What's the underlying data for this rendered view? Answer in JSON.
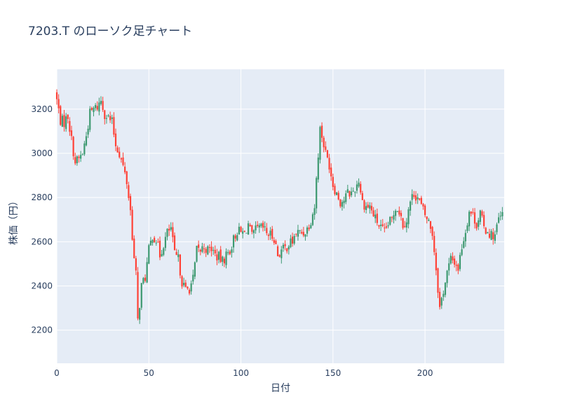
{
  "chart_data": {
    "type": "candlestick",
    "title": "7203.T のローソク足チャート",
    "xlabel": "日付",
    "ylabel": "株価（円）",
    "xlim": [
      0,
      243
    ],
    "ylim": [
      2050,
      3380
    ],
    "x_ticks": [
      0,
      50,
      100,
      150,
      200
    ],
    "x_tick_labels": [
      "0",
      "50",
      "100",
      "150",
      "200"
    ],
    "y_ticks": [
      2200,
      2400,
      2600,
      2800,
      3000,
      3200
    ],
    "y_tick_labels": [
      "2200",
      "2400",
      "2600",
      "2800",
      "3000",
      "3200"
    ],
    "grid": true,
    "increasing_color": "#3d9970",
    "decreasing_color": "#ff4136",
    "plot_bg": "#e5ecf6",
    "close_path": [
      [
        0,
        3240
      ],
      [
        2,
        3150
      ],
      [
        4,
        3140
      ],
      [
        6,
        3170
      ],
      [
        8,
        3060
      ],
      [
        10,
        2960
      ],
      [
        12,
        2975
      ],
      [
        14,
        3000
      ],
      [
        16,
        3080
      ],
      [
        18,
        3180
      ],
      [
        20,
        3200
      ],
      [
        22,
        3210
      ],
      [
        24,
        3240
      ],
      [
        26,
        3180
      ],
      [
        28,
        3160
      ],
      [
        30,
        3140
      ],
      [
        32,
        3040
      ],
      [
        34,
        3000
      ],
      [
        36,
        2940
      ],
      [
        38,
        2870
      ],
      [
        40,
        2740
      ],
      [
        42,
        2520
      ],
      [
        43,
        2450
      ],
      [
        44,
        2240
      ],
      [
        46,
        2400
      ],
      [
        48,
        2440
      ],
      [
        50,
        2560
      ],
      [
        52,
        2630
      ],
      [
        54,
        2610
      ],
      [
        56,
        2540
      ],
      [
        58,
        2590
      ],
      [
        60,
        2640
      ],
      [
        62,
        2660
      ],
      [
        64,
        2540
      ],
      [
        66,
        2520
      ],
      [
        68,
        2420
      ],
      [
        70,
        2380
      ],
      [
        72,
        2390
      ],
      [
        74,
        2430
      ],
      [
        76,
        2560
      ],
      [
        78,
        2560
      ],
      [
        80,
        2580
      ],
      [
        82,
        2560
      ],
      [
        84,
        2570
      ],
      [
        86,
        2540
      ],
      [
        88,
        2530
      ],
      [
        90,
        2510
      ],
      [
        92,
        2540
      ],
      [
        94,
        2560
      ],
      [
        96,
        2610
      ],
      [
        98,
        2650
      ],
      [
        100,
        2640
      ],
      [
        102,
        2640
      ],
      [
        104,
        2680
      ],
      [
        106,
        2620
      ],
      [
        108,
        2650
      ],
      [
        110,
        2660
      ],
      [
        112,
        2660
      ],
      [
        114,
        2640
      ],
      [
        116,
        2630
      ],
      [
        118,
        2620
      ],
      [
        120,
        2540
      ],
      [
        122,
        2560
      ],
      [
        124,
        2570
      ],
      [
        126,
        2590
      ],
      [
        128,
        2600
      ],
      [
        130,
        2640
      ],
      [
        132,
        2640
      ],
      [
        134,
        2640
      ],
      [
        136,
        2660
      ],
      [
        138,
        2700
      ],
      [
        140,
        2760
      ],
      [
        142,
        3000
      ],
      [
        143,
        3110
      ],
      [
        144,
        3080
      ],
      [
        146,
        3000
      ],
      [
        148,
        2950
      ],
      [
        150,
        2860
      ],
      [
        152,
        2820
      ],
      [
        154,
        2780
      ],
      [
        156,
        2790
      ],
      [
        158,
        2820
      ],
      [
        160,
        2820
      ],
      [
        162,
        2840
      ],
      [
        164,
        2880
      ],
      [
        166,
        2780
      ],
      [
        168,
        2760
      ],
      [
        170,
        2760
      ],
      [
        172,
        2720
      ],
      [
        174,
        2690
      ],
      [
        176,
        2660
      ],
      [
        178,
        2640
      ],
      [
        180,
        2680
      ],
      [
        182,
        2700
      ],
      [
        184,
        2760
      ],
      [
        186,
        2740
      ],
      [
        188,
        2680
      ],
      [
        190,
        2700
      ],
      [
        192,
        2780
      ],
      [
        194,
        2820
      ],
      [
        196,
        2800
      ],
      [
        198,
        2760
      ],
      [
        200,
        2720
      ],
      [
        202,
        2690
      ],
      [
        204,
        2640
      ],
      [
        206,
        2480
      ],
      [
        208,
        2300
      ],
      [
        210,
        2380
      ],
      [
        212,
        2460
      ],
      [
        214,
        2520
      ],
      [
        216,
        2510
      ],
      [
        218,
        2480
      ],
      [
        220,
        2580
      ],
      [
        222,
        2650
      ],
      [
        224,
        2740
      ],
      [
        226,
        2720
      ],
      [
        228,
        2680
      ],
      [
        230,
        2730
      ],
      [
        232,
        2660
      ],
      [
        234,
        2650
      ],
      [
        236,
        2630
      ],
      [
        238,
        2630
      ],
      [
        240,
        2700
      ],
      [
        242,
        2720
      ]
    ]
  }
}
